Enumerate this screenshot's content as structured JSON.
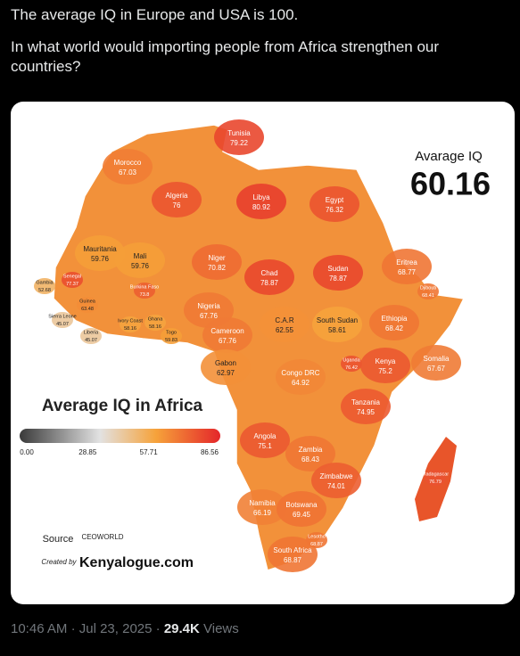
{
  "post": {
    "paragraphs": [
      "The average IQ in Europe and USA is 100.",
      "In what world would importing people from Africa strengthen our countries?"
    ]
  },
  "map": {
    "title": "Average IQ in Africa",
    "average_label": "Avarage IQ",
    "average_value": 60.16,
    "legend_ticks": [
      {
        "value": 0,
        "label": "0.00"
      },
      {
        "value": 28.85,
        "label": "28.85"
      },
      {
        "value": 57.71,
        "label": "57.71"
      },
      {
        "value": 86.56,
        "label": "86.56"
      }
    ],
    "source_label": "Source",
    "source": "CEOWORLD",
    "created_by_label": "Created by",
    "created_by": "Kenyalogue.com",
    "countries": [
      {
        "name": "Tunisia",
        "value": 79.22
      },
      {
        "name": "Morocco",
        "value": 67.03
      },
      {
        "name": "Algeria",
        "value": 76
      },
      {
        "name": "Libya",
        "value": 80.92
      },
      {
        "name": "Egypt",
        "value": 76.32
      },
      {
        "name": "Mauritania",
        "value": 59.76
      },
      {
        "name": "Mali",
        "value": 59.76
      },
      {
        "name": "Niger",
        "value": 70.82
      },
      {
        "name": "Chad",
        "value": 78.87
      },
      {
        "name": "Sudan",
        "value": 78.87
      },
      {
        "name": "Eritrea",
        "value": 68.77
      },
      {
        "name": "Djibouti",
        "value": 68.41
      },
      {
        "name": "Gambia",
        "value": 52.68
      },
      {
        "name": "Senegal",
        "value": 77.37
      },
      {
        "name": "Guinea",
        "value": 63.48
      },
      {
        "name": "Sierra Leone",
        "value": 45.07
      },
      {
        "name": "Liberia",
        "value": 45.07
      },
      {
        "name": "Ivory Coast",
        "value": 58.16
      },
      {
        "name": "Ghana",
        "value": 58.16
      },
      {
        "name": "Burkina Faso",
        "value": 73.8
      },
      {
        "name": "Togo",
        "value": 59.83
      },
      {
        "name": "Nigeria",
        "value": 67.76
      },
      {
        "name": "Cameroon",
        "value": 67.76
      },
      {
        "name": "C.A.R",
        "value": 62.55
      },
      {
        "name": "South Sudan",
        "value": 58.61
      },
      {
        "name": "Ethiopia",
        "value": 68.42
      },
      {
        "name": "Somalia",
        "value": 67.67
      },
      {
        "name": "Uganda",
        "value": 76.42
      },
      {
        "name": "Kenya",
        "value": 75.2
      },
      {
        "name": "Gabon",
        "value": 62.97
      },
      {
        "name": "Congo DRC",
        "value": 64.92
      },
      {
        "name": "Tanzania",
        "value": 74.95
      },
      {
        "name": "Angola",
        "value": 75.1
      },
      {
        "name": "Zambia",
        "value": 68.43
      },
      {
        "name": "Zimbabwe",
        "value": 74.01
      },
      {
        "name": "Madagascar",
        "value": 76.79
      },
      {
        "name": "Namibia",
        "value": 66.19
      },
      {
        "name": "Botswana",
        "value": 69.45
      },
      {
        "name": "Lesotho",
        "value": 68.87
      },
      {
        "name": "South Africa",
        "value": 68.87
      }
    ]
  },
  "footer": {
    "time": "10:46 AM",
    "separator": "·",
    "date": "Jul 23, 2025",
    "views": "29.4K",
    "views_label": "Views"
  }
}
